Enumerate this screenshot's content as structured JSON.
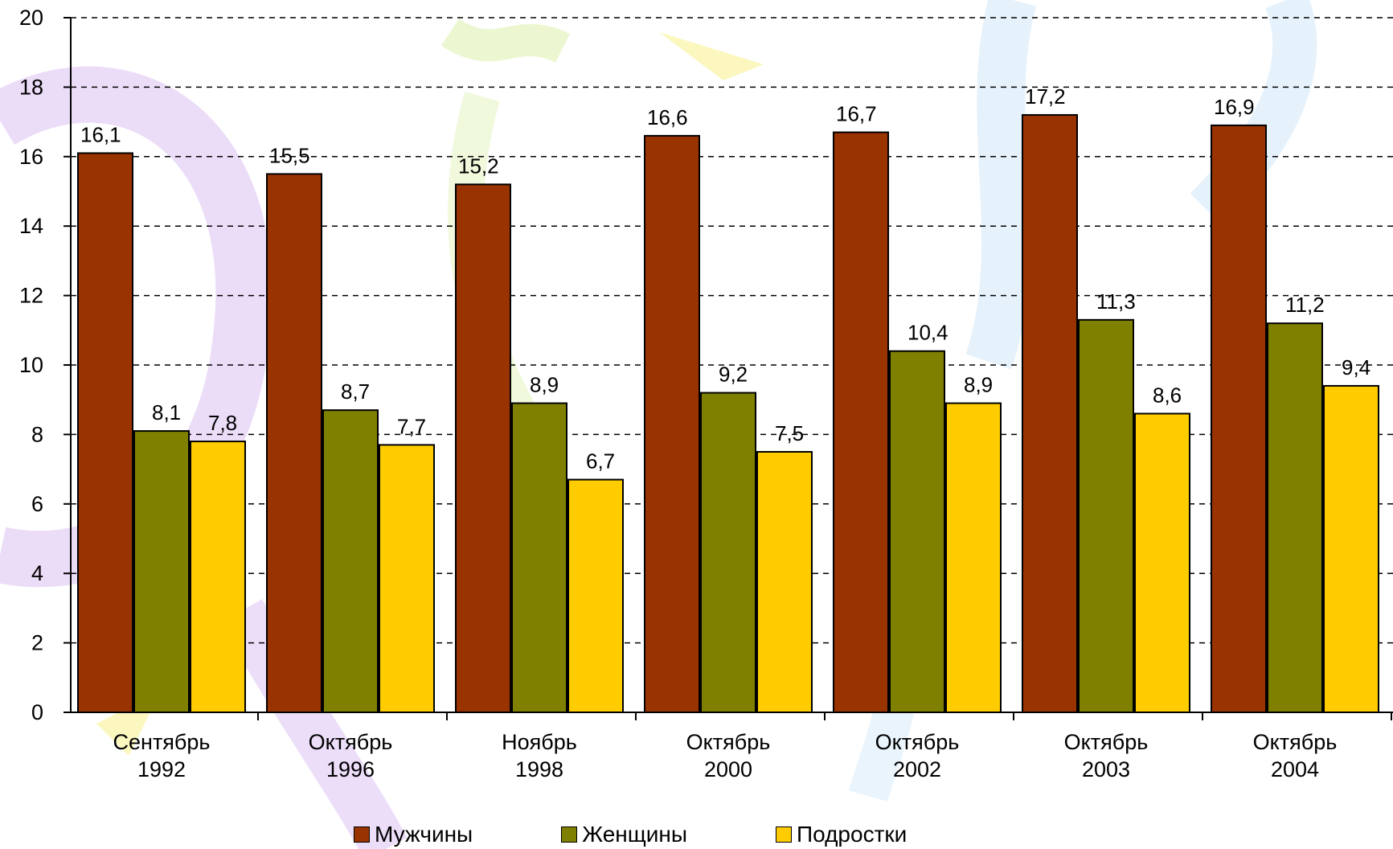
{
  "chart_data": {
    "type": "bar",
    "categories": [
      [
        "Сентябрь",
        "1992"
      ],
      [
        "Октябрь",
        "1996"
      ],
      [
        "Ноябрь",
        "1998"
      ],
      [
        "Октябрь",
        "2000"
      ],
      [
        "Октябрь",
        "2002"
      ],
      [
        "Октябрь",
        "2003"
      ],
      [
        "Октябрь",
        "2004"
      ]
    ],
    "series": [
      {
        "name": "Мужчины",
        "color": "#993300",
        "values": [
          16.1,
          15.5,
          15.2,
          16.6,
          16.7,
          17.2,
          16.9
        ],
        "labels": [
          "16,1",
          "15,5",
          "15,2",
          "16,6",
          "16,7",
          "17,2",
          "16,9"
        ]
      },
      {
        "name": "Женщины",
        "color": "#808000",
        "values": [
          8.1,
          8.7,
          8.9,
          9.2,
          10.4,
          11.3,
          11.2
        ],
        "labels": [
          "8,1",
          "8,7",
          "8,9",
          "9,2",
          "10,4",
          "11,3",
          "11,2"
        ]
      },
      {
        "name": "Подростки",
        "color": "#FFCC00",
        "values": [
          7.8,
          7.7,
          6.7,
          7.5,
          8.9,
          8.6,
          9.4
        ],
        "labels": [
          "7,8",
          "7,7",
          "6,7",
          "7,5",
          "8,9",
          "8,6",
          "9,4"
        ]
      }
    ],
    "ylim": [
      0,
      20
    ],
    "yticks": [
      0,
      2,
      4,
      6,
      8,
      10,
      12,
      14,
      16,
      18,
      20
    ],
    "grid": true,
    "legend_position": "bottom"
  }
}
